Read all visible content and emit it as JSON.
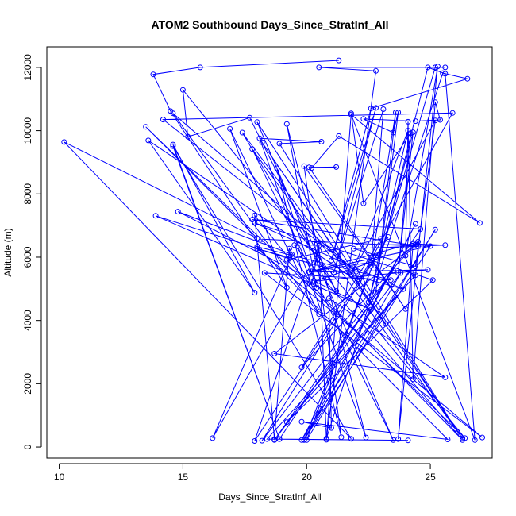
{
  "chart_data": {
    "type": "line",
    "title": "ATOM2 Southbound Days_Since_StratInf_All",
    "xlabel": "Days_Since_StratInf_All",
    "ylabel": "Altitude (m)",
    "xlim": [
      9.5,
      27.5
    ],
    "ylim": [
      -350,
      12650
    ],
    "xticks": [
      10,
      15,
      20,
      25
    ],
    "yticks": [
      0,
      2000,
      4000,
      6000,
      8000,
      10000,
      12000
    ],
    "grid": false,
    "legend": "none",
    "marker": "open-circle",
    "color": "#0000ff",
    "series": [
      {
        "points": [
          [
            21.3,
            12220
          ],
          [
            15.7,
            12000
          ],
          [
            13.8,
            11780
          ],
          [
            14.5,
            10620
          ],
          [
            19.2,
            5040
          ],
          [
            16.9,
            10060
          ],
          [
            20.5,
            4200
          ],
          [
            14.6,
            10550
          ],
          [
            22.0,
            5540
          ],
          [
            14.2,
            10350
          ],
          [
            25.9,
            10560
          ],
          [
            22.1,
            5220
          ],
          [
            13.6,
            9690
          ],
          [
            17.9,
            4880
          ],
          [
            14.6,
            9560
          ],
          [
            18.9,
            250
          ],
          [
            14.6,
            9510
          ],
          [
            21.8,
            260
          ],
          [
            10.2,
            9640
          ],
          [
            18.0,
            6600
          ],
          [
            13.5,
            10120
          ],
          [
            26.4,
            280
          ],
          [
            15.0,
            11290
          ],
          [
            15.2,
            9810
          ],
          [
            17.7,
            10410
          ],
          [
            21.2,
            4930
          ],
          [
            17.4,
            9940
          ],
          [
            23.2,
            3890
          ],
          [
            18.2,
            9630
          ],
          [
            26.3,
            270
          ],
          [
            17.8,
            9420
          ],
          [
            23.5,
            220
          ],
          [
            18.0,
            10270
          ],
          [
            26.1,
            470
          ],
          [
            18.9,
            9590
          ],
          [
            20.6,
            9650
          ],
          [
            18.1,
            9760
          ],
          [
            22.4,
            300
          ],
          [
            19.2,
            10210
          ],
          [
            20.4,
            5030
          ],
          [
            18.8,
            8810
          ],
          [
            21.4,
            310
          ],
          [
            19.9,
            8880
          ],
          [
            24.0,
            4360
          ],
          [
            20.1,
            8840
          ],
          [
            21.2,
            8850
          ],
          [
            20.2,
            8820
          ],
          [
            21.3,
            9830
          ],
          [
            27.0,
            7080
          ],
          [
            21.8,
            10510
          ],
          [
            26.8,
            220
          ],
          [
            25.6,
            11800
          ],
          [
            24.9,
            12000
          ],
          [
            23.0,
            6060
          ],
          [
            25.2,
            12000
          ],
          [
            25.6,
            12000
          ],
          [
            20.5,
            12000
          ],
          [
            22.8,
            11890
          ],
          [
            20.8,
            270
          ],
          [
            25.5,
            11820
          ],
          [
            26.5,
            11640
          ],
          [
            22.6,
            10700
          ],
          [
            21.0,
            5900
          ],
          [
            22.8,
            10720
          ],
          [
            21.1,
            5500
          ],
          [
            23.1,
            10680
          ],
          [
            22.6,
            5720
          ],
          [
            23.6,
            10580
          ],
          [
            22.8,
            4890
          ],
          [
            23.7,
            10580
          ],
          [
            23.5,
            9940
          ],
          [
            22.3,
            10370
          ],
          [
            24.4,
            10300
          ],
          [
            25.4,
            10340
          ],
          [
            25.2,
            10900
          ],
          [
            24.3,
            2140
          ],
          [
            24.1,
            10280
          ],
          [
            24.0,
            6050
          ],
          [
            25.3,
            12030
          ],
          [
            23.7,
            250
          ],
          [
            24.3,
            6420
          ],
          [
            25.6,
            6380
          ],
          [
            21.9,
            6270
          ],
          [
            24.4,
            5710
          ],
          [
            25.2,
            10320
          ],
          [
            21.8,
            5440
          ],
          [
            24.1,
            10000
          ],
          [
            22.5,
            4580
          ],
          [
            24.3,
            9950
          ],
          [
            23.7,
            5500
          ],
          [
            24.2,
            9920
          ],
          [
            22.3,
            7700
          ],
          [
            21.8,
            10550
          ],
          [
            20.8,
            230
          ],
          [
            20.5,
            6370
          ],
          [
            20.2,
            5130
          ],
          [
            19.3,
            6270
          ],
          [
            18.7,
            250
          ],
          [
            17.9,
            7320
          ],
          [
            19.3,
            5950
          ],
          [
            13.9,
            7310
          ],
          [
            22.6,
            4340
          ],
          [
            14.8,
            7440
          ],
          [
            19.4,
            6090
          ],
          [
            16.2,
            280
          ],
          [
            20.5,
            6200
          ],
          [
            17.9,
            190
          ],
          [
            23.3,
            6640
          ],
          [
            18.2,
            200
          ],
          [
            23.5,
            5580
          ],
          [
            18.7,
            220
          ],
          [
            23.8,
            5500
          ],
          [
            19.9,
            220
          ],
          [
            24.4,
            7050
          ],
          [
            19.8,
            220
          ],
          [
            25.2,
            6870
          ],
          [
            20.0,
            220
          ],
          [
            22.8,
            6010
          ],
          [
            19.9,
            230
          ],
          [
            25.0,
            6350
          ],
          [
            20.2,
            5550
          ],
          [
            22.6,
            5840
          ],
          [
            20.3,
            5240
          ],
          [
            24.9,
            5600
          ],
          [
            20.1,
            5530
          ],
          [
            24.5,
            6490
          ],
          [
            19.8,
            2520
          ],
          [
            23.0,
            6580
          ],
          [
            19.2,
            5920
          ],
          [
            26.3,
            220
          ],
          [
            19.5,
            6380
          ],
          [
            24.4,
            6400
          ],
          [
            18.7,
            2950
          ],
          [
            25.6,
            2200
          ],
          [
            20.9,
            4700
          ],
          [
            21.0,
            600
          ],
          [
            19.8,
            800
          ],
          [
            25.7,
            240
          ],
          [
            18.0,
            6330
          ],
          [
            23.4,
            5280
          ],
          [
            18.3,
            5500
          ],
          [
            27.1,
            300
          ],
          [
            18.0,
            6270
          ],
          [
            23.9,
            4990
          ],
          [
            17.9,
            7080
          ],
          [
            25.1,
            5280
          ],
          [
            19.2,
            790
          ],
          [
            24.4,
            5430
          ],
          [
            18.4,
            250
          ],
          [
            24.1,
            210
          ],
          [
            18.9,
            250
          ],
          [
            24.6,
            6890
          ],
          [
            17.8,
            7190
          ],
          [
            24.5,
            6350
          ],
          [
            18.2,
            6570
          ]
        ]
      }
    ]
  }
}
